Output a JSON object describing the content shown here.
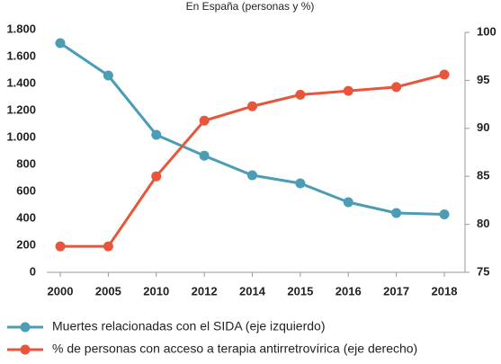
{
  "chart_data": {
    "type": "line",
    "title": "En España (personas y %)",
    "categories": [
      "2000",
      "2005",
      "2010",
      "2012",
      "2014",
      "2015",
      "2016",
      "2017",
      "2018"
    ],
    "series": [
      {
        "name": "Muertes relacionadas con el SIDA (eje izquierdo)",
        "color": "#4a9db5",
        "values": [
          1700,
          1460,
          1020,
          865,
          720,
          660,
          520,
          440,
          430
        ]
      },
      {
        "name": "% de personas con acceso a terapia antirretrovírica (eje derecho)",
        "color": "#e8553a",
        "axis": "y2",
        "values": [
          77.7,
          77.7,
          85.0,
          90.8,
          92.3,
          93.5,
          93.9,
          94.3,
          95.6
        ]
      }
    ],
    "ylim": [
      0,
      1800
    ],
    "yticks": [
      0,
      200,
      400,
      600,
      800,
      {
        "value": 1000,
        "label": "1.000"
      },
      {
        "value": 1200,
        "label": "1.200"
      },
      {
        "value": 1400,
        "label": "1.400"
      },
      {
        "value": 1600,
        "label": "1.600"
      },
      {
        "value": 1800,
        "label": "1.800"
      }
    ],
    "y2lim": [
      75,
      100
    ],
    "y2ticks": [
      75,
      80,
      85,
      90,
      95,
      100
    ],
    "grid": false,
    "legend": "bottom"
  }
}
